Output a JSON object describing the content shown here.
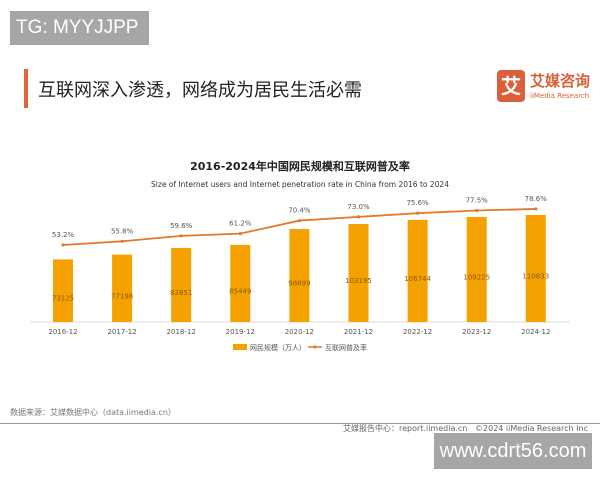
{
  "watermark_top": "TG: MYYJJPP",
  "heading": "互联网深入渗透，网络成为居民生活必需",
  "logo": {
    "mark": "艾",
    "cn": "艾媒咨询",
    "en": "iiMedia Research"
  },
  "chart_data": {
    "type": "bar+line",
    "title": "2016-2024年中国网民规模和互联网普及率",
    "subtitle": "Size of Internet users and Internet penetration rate in China from 2016 to 2024",
    "categories": [
      "2016-12",
      "2017-12",
      "2018-12",
      "2019-12",
      "2020-12",
      "2021-12",
      "2022-12",
      "2023-12",
      "2024-12"
    ],
    "series": [
      {
        "name": "网民规模（万人）",
        "type": "bar",
        "color": "#f5a200",
        "values": [
          73125,
          77198,
          82851,
          85449,
          98899,
          103195,
          106744,
          109225,
          110833
        ]
      },
      {
        "name": "互联网普及率",
        "type": "line",
        "color": "#e07a2c",
        "values": [
          53.2,
          55.8,
          59.6,
          61.2,
          70.4,
          73.0,
          75.6,
          77.5,
          78.6
        ],
        "labels": [
          "53.2%",
          "55.8%",
          "59.6%",
          "61.2%",
          "70.4%",
          "73.0%",
          "75.6%",
          "77.5%",
          "78.6%"
        ]
      }
    ],
    "legend": "bottom"
  },
  "footer": {
    "source": "数据来源：艾媒数据中心（data.iimedia.cn）",
    "report": "艾媒报告中心：report.iimedia.cn",
    "copyright": "©2024  iiMedia Research  Inc"
  },
  "watermark_bottom": "www.cdrt56.com"
}
